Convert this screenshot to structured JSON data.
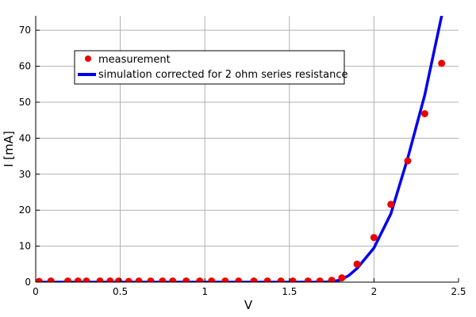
{
  "chart_data": {
    "type": "scatter",
    "title": "",
    "xlabel": "V",
    "ylabel": "I [mA]",
    "xlim": [
      0,
      2.5
    ],
    "ylim": [
      0,
      74
    ],
    "xticks": [
      0,
      0.5,
      1,
      1.5,
      2,
      2.5
    ],
    "xtick_labels": [
      "0",
      "0.5",
      "1",
      "1.5",
      "2",
      "2.5"
    ],
    "yticks": [
      0,
      10,
      20,
      30,
      40,
      50,
      60,
      70
    ],
    "ytick_labels": [
      "0",
      "10",
      "20",
      "30",
      "40",
      "50",
      "60",
      "70"
    ],
    "grid": true,
    "legend_position": "top-left",
    "series": [
      {
        "name": "measurement",
        "kind": "scatter",
        "color": "#ee0000",
        "x": [
          0.02,
          0.09,
          0.19,
          0.25,
          0.3,
          0.38,
          0.44,
          0.49,
          0.55,
          0.61,
          0.68,
          0.75,
          0.81,
          0.89,
          0.97,
          1.04,
          1.12,
          1.2,
          1.29,
          1.37,
          1.45,
          1.52,
          1.61,
          1.68,
          1.75,
          1.81,
          1.9,
          2.0,
          2.1,
          2.2,
          2.3,
          2.4
        ],
        "y": [
          0.2,
          0.3,
          0.3,
          0.3,
          0.3,
          0.3,
          0.3,
          0.3,
          0.2,
          0.3,
          0.3,
          0.3,
          0.3,
          0.3,
          0.3,
          0.3,
          0.3,
          0.3,
          0.3,
          0.3,
          0.3,
          0.3,
          0.3,
          0.3,
          0.5,
          1.2,
          5.0,
          12.4,
          21.6,
          33.7,
          46.8,
          60.8
        ]
      },
      {
        "name": "simulation corrected for 2 ohm series resistance",
        "kind": "line",
        "color": "#0000ee",
        "x": [
          0,
          0.5,
          1.0,
          1.5,
          1.7,
          1.75,
          1.8,
          1.85,
          1.9,
          2.0,
          2.1,
          2.2,
          2.3,
          2.4,
          2.5
        ],
        "y": [
          0,
          0,
          0,
          0,
          0,
          0.1,
          0.6,
          1.8,
          3.8,
          9.5,
          19.0,
          34.5,
          52.0,
          74.0,
          95.0
        ]
      }
    ]
  }
}
